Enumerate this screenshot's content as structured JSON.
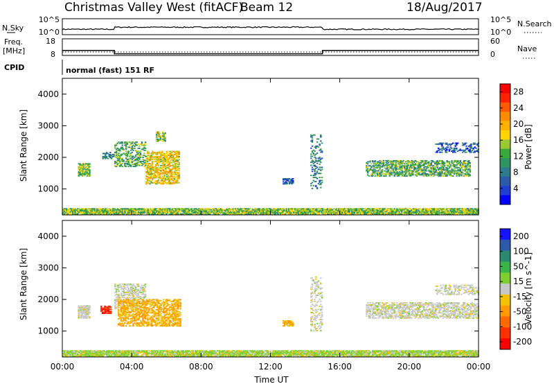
{
  "header": {
    "station": "Christmas Valley West (fitACF)",
    "beam": "Beam 12",
    "date": "18/Aug/2017"
  },
  "panels": {
    "nsky": {
      "left_label": "N.Sky",
      "right_label": "N.Search",
      "tick_top": "10^5",
      "tick_bottom": "10^0"
    },
    "freq": {
      "left_label_1": "Freq.",
      "left_label_2": "[MHz]",
      "left_tick_top": "18",
      "left_tick_bottom": "8",
      "right_label": "Nave",
      "right_tick_top": "60",
      "right_tick_bottom": "0"
    },
    "cpid": {
      "label": "CPID",
      "text": "normal (fast) 151 RF"
    }
  },
  "chart_data": [
    {
      "type": "heatmap",
      "title": "",
      "xlabel": "",
      "ylabel": "Slant Range [km]",
      "xlim": [
        0,
        24
      ],
      "ylim": [
        180,
        4500
      ],
      "x_ticks": [
        "00:00",
        "04:00",
        "08:00",
        "12:00",
        "16:00",
        "20:00",
        "00:00"
      ],
      "y_ticks": [
        "1000",
        "2000",
        "3000",
        "4000"
      ],
      "colorbar": {
        "label": "Power [dB]",
        "range": [
          0,
          30
        ],
        "ticks": [
          "4",
          "8",
          "12",
          "16",
          "20",
          "24",
          "28"
        ],
        "colors": [
          "#0000ff",
          "#1f3fd0",
          "#2b5aa8",
          "#2e7a8e",
          "#2d9560",
          "#3aa83a",
          "#9ac830",
          "#ffd400",
          "#ffb000",
          "#ff8c00",
          "#ff5a00",
          "#ff2000",
          "#ff0000"
        ]
      },
      "regions": [
        {
          "t": [
            0,
            24
          ],
          "r": [
            200,
            380
          ],
          "value": 14,
          "density": 0.85
        },
        {
          "t": [
            0.9,
            1.6
          ],
          "r": [
            1400,
            1800
          ],
          "value": 14,
          "density": 0.8
        },
        {
          "t": [
            2.3,
            3.0
          ],
          "r": [
            1950,
            2150
          ],
          "value": 8,
          "density": 0.45
        },
        {
          "t": [
            3.0,
            4.8
          ],
          "r": [
            1700,
            2500
          ],
          "value": 12,
          "density": 0.45
        },
        {
          "t": [
            4.8,
            6.7
          ],
          "r": [
            1150,
            2200
          ],
          "value": 18,
          "density": 0.6
        },
        {
          "t": [
            5.4,
            5.9
          ],
          "r": [
            2500,
            2800
          ],
          "value": 14,
          "density": 0.6
        },
        {
          "t": [
            12.7,
            13.3
          ],
          "r": [
            1150,
            1320
          ],
          "value": 6,
          "density": 0.7
        },
        {
          "t": [
            14.3,
            15.0
          ],
          "r": [
            1000,
            2700
          ],
          "value": 8,
          "density": 0.25
        },
        {
          "t": [
            17.5,
            19.2
          ],
          "r": [
            1400,
            1900
          ],
          "value": 12,
          "density": 0.5
        },
        {
          "t": [
            19.2,
            23.5
          ],
          "r": [
            1400,
            1900
          ],
          "value": 12,
          "density": 0.6
        },
        {
          "t": [
            21.5,
            24.0
          ],
          "r": [
            2150,
            2450
          ],
          "value": 6,
          "density": 0.4
        }
      ]
    },
    {
      "type": "heatmap",
      "title": "",
      "xlabel": "Time UT",
      "ylabel": "Slant Range [km]",
      "xlim": [
        0,
        24
      ],
      "ylim": [
        180,
        4500
      ],
      "x_ticks": [
        "00:00",
        "04:00",
        "08:00",
        "12:00",
        "16:00",
        "20:00",
        "00:00"
      ],
      "y_ticks": [
        "1000",
        "2000",
        "3000",
        "4000"
      ],
      "colorbar": {
        "label": "Velocity [m s^-1]",
        "ticks": [
          "200",
          "100",
          "50",
          "15",
          "-15",
          "-50",
          "-100",
          "-200"
        ],
        "colors": [
          "#1414ff",
          "#2d5aa8",
          "#2a8a70",
          "#39b64a",
          "#7ed030",
          "#c8c8c8",
          "#f2c200",
          "#ff9a00",
          "#ff6a00",
          "#ff3000",
          "#ff0000"
        ]
      },
      "regions": [
        {
          "t": [
            0,
            24
          ],
          "r": [
            200,
            380
          ],
          "value": 30,
          "density": 0.85
        },
        {
          "t": [
            0.9,
            1.6
          ],
          "r": [
            1400,
            1800
          ],
          "value": 0,
          "density": 0.8
        },
        {
          "t": [
            2.2,
            2.8
          ],
          "r": [
            1550,
            1800
          ],
          "value": -200,
          "density": 0.7
        },
        {
          "t": [
            3.0,
            4.8
          ],
          "r": [
            1700,
            2500
          ],
          "value": 0,
          "density": 0.45
        },
        {
          "t": [
            3.2,
            6.8
          ],
          "r": [
            1150,
            2000
          ],
          "value": -70,
          "density": 0.55
        },
        {
          "t": [
            12.7,
            13.3
          ],
          "r": [
            1150,
            1320
          ],
          "value": -70,
          "density": 0.7
        },
        {
          "t": [
            14.3,
            15.0
          ],
          "r": [
            1000,
            2700
          ],
          "value": 0,
          "density": 0.25
        },
        {
          "t": [
            17.5,
            24.0
          ],
          "r": [
            1400,
            1900
          ],
          "value": 0,
          "density": 0.55
        },
        {
          "t": [
            21.5,
            24.0
          ],
          "r": [
            2150,
            2450
          ],
          "value": 0,
          "density": 0.4
        }
      ]
    }
  ],
  "timeline": {
    "nsky_level": 0.3,
    "freq_segments": [
      {
        "t": [
          0,
          3
        ],
        "v": 11
      },
      {
        "t": [
          3,
          15
        ],
        "v": 9
      },
      {
        "t": [
          15,
          24
        ],
        "v": 11
      }
    ],
    "nave_level": 0.35
  }
}
